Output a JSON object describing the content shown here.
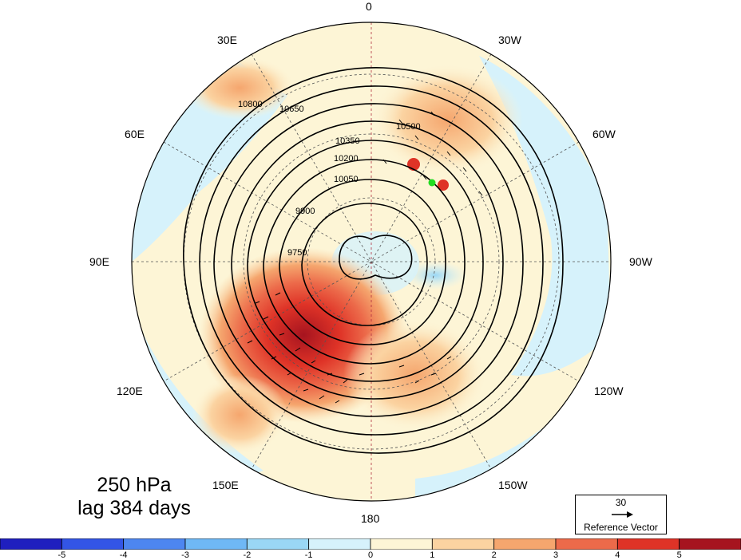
{
  "map": {
    "projection": "north-polar-stereographic",
    "level_label": "250 hPa",
    "lag_label": "lag 384 days",
    "longitude_labels": [
      "0",
      "30W",
      "60W",
      "90W",
      "120W",
      "150W",
      "180",
      "150E",
      "120E",
      "90E",
      "60E",
      "30E"
    ],
    "contour_labels": [
      "10800",
      "10650",
      "10500",
      "10350",
      "10200",
      "10050",
      "9900",
      "9750"
    ],
    "shading_variable_range": [
      -5,
      5
    ],
    "marker_color": "#22dd22"
  },
  "reference_vector": {
    "magnitude": "30",
    "label": "Reference Vector"
  },
  "colorbar": {
    "ticks": [
      "-5",
      "-4",
      "-3",
      "-2",
      "-1",
      "0",
      "1",
      "2",
      "3",
      "4",
      "5"
    ],
    "colors": [
      "#1f1fbf",
      "#3355e6",
      "#4d86f0",
      "#6fb8f5",
      "#9ad7f5",
      "#d6f2fb",
      "#fdf5d6",
      "#fbd3a1",
      "#f5a66e",
      "#ec6a4a",
      "#df3327",
      "#a6141f"
    ]
  }
}
